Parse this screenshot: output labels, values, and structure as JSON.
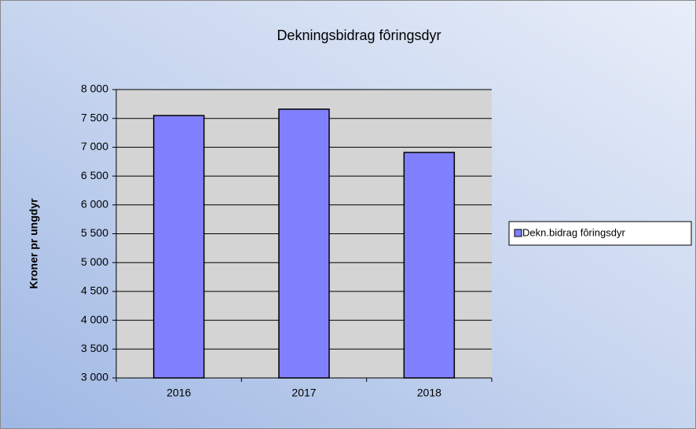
{
  "chart_data": {
    "type": "bar",
    "title": "Dekningsbidrag fôringsdyr",
    "y_label": "Kroner pr ungdyr",
    "categories": [
      "2016",
      "2017",
      "2018"
    ],
    "series": [
      {
        "name": "Dekn.bidrag fôringsdyr",
        "color": "#8080ff",
        "values": [
          7550,
          7660,
          6910
        ]
      }
    ],
    "ylim": [
      3000,
      8000
    ],
    "yticks": [
      {
        "value": 3000,
        "label": "3 000"
      },
      {
        "value": 3500,
        "label": "3 500"
      },
      {
        "value": 4000,
        "label": "4 000"
      },
      {
        "value": 4500,
        "label": "4 500"
      },
      {
        "value": 5000,
        "label": "5 000"
      },
      {
        "value": 5500,
        "label": "5 500"
      },
      {
        "value": 6000,
        "label": "6 000"
      },
      {
        "value": 6500,
        "label": "6 500"
      },
      {
        "value": 7000,
        "label": "7 000"
      },
      {
        "value": 7500,
        "label": "7 500"
      },
      {
        "value": 8000,
        "label": "8 000"
      }
    ],
    "grid": true,
    "legend": "right"
  }
}
